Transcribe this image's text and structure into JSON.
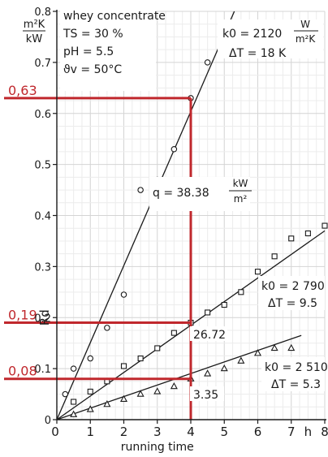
{
  "chart_data": {
    "type": "scatter",
    "title_lines": [
      "whey concentrate",
      "TS = 30 %",
      "pH = 5.5",
      "ϑv = 50°C"
    ],
    "ylabel_unit_top": "m²K",
    "ylabel_unit_bottom": "kW",
    "ylabel": "Rd",
    "xlabel": "running time",
    "x_unit": "h",
    "xlim": [
      0,
      8
    ],
    "ylim": [
      0,
      0.8
    ],
    "xticks": [
      0,
      1,
      2,
      3,
      4,
      5,
      6,
      7,
      8
    ],
    "xtick_labels": [
      "0",
      "1",
      "2",
      "3",
      "4",
      "5",
      "6",
      "7",
      "8"
    ],
    "yticks": [
      0,
      0.1,
      0.2,
      0.3,
      0.4,
      0.5,
      0.6,
      0.7,
      0.8
    ],
    "ytick_labels": [
      "0",
      "0.1",
      "0.2",
      "0.3",
      "0.4",
      "0.5",
      "0.6",
      "0.7",
      "0.8"
    ],
    "series": [
      {
        "marker": "circle",
        "line": [
          [
            0,
            0.0
          ],
          [
            5.3,
            0.8
          ]
        ],
        "points": [
          {
            "x": 0.25,
            "y": 0.05
          },
          {
            "x": 0.5,
            "y": 0.1
          },
          {
            "x": 1.0,
            "y": 0.12
          },
          {
            "x": 1.5,
            "y": 0.18
          },
          {
            "x": 2.0,
            "y": 0.245
          },
          {
            "x": 2.5,
            "y": 0.45
          },
          {
            "x": 3.0,
            "y": 0.47
          },
          {
            "x": 3.5,
            "y": 0.53
          },
          {
            "x": 4.0,
            "y": 0.63
          },
          {
            "x": 4.5,
            "y": 0.7
          }
        ],
        "labels": [
          {
            "text": "k0 = 2120",
            "unit_top": "W",
            "unit_bottom": "m²K"
          },
          {
            "text": "ΔT = 18 K"
          },
          {
            "text": "q = 38.38",
            "unit_top": "kW",
            "unit_bottom": "m²"
          }
        ]
      },
      {
        "marker": "square",
        "line": [
          [
            0,
            0.0
          ],
          [
            8.0,
            0.37
          ]
        ],
        "points": [
          {
            "x": 0.5,
            "y": 0.035
          },
          {
            "x": 1.0,
            "y": 0.055
          },
          {
            "x": 1.5,
            "y": 0.075
          },
          {
            "x": 2.0,
            "y": 0.105
          },
          {
            "x": 2.5,
            "y": 0.12
          },
          {
            "x": 3.0,
            "y": 0.14
          },
          {
            "x": 3.5,
            "y": 0.17
          },
          {
            "x": 4.0,
            "y": 0.19
          },
          {
            "x": 4.5,
            "y": 0.21
          },
          {
            "x": 5.0,
            "y": 0.225
          },
          {
            "x": 5.5,
            "y": 0.25
          },
          {
            "x": 6.0,
            "y": 0.29
          },
          {
            "x": 6.5,
            "y": 0.32
          },
          {
            "x": 7.0,
            "y": 0.355
          },
          {
            "x": 7.5,
            "y": 0.365
          },
          {
            "x": 8.0,
            "y": 0.38
          }
        ],
        "labels": [
          {
            "text": "26.72"
          },
          {
            "text": "k0 = 2 790"
          },
          {
            "text": "ΔT = 9.5"
          }
        ]
      },
      {
        "marker": "triangle",
        "line": [
          [
            0,
            0.0
          ],
          [
            7.3,
            0.165
          ]
        ],
        "points": [
          {
            "x": 0.5,
            "y": 0.01
          },
          {
            "x": 1.0,
            "y": 0.02
          },
          {
            "x": 1.5,
            "y": 0.03
          },
          {
            "x": 2.0,
            "y": 0.04
          },
          {
            "x": 2.5,
            "y": 0.05
          },
          {
            "x": 3.0,
            "y": 0.055
          },
          {
            "x": 3.5,
            "y": 0.065
          },
          {
            "x": 4.0,
            "y": 0.08
          },
          {
            "x": 4.5,
            "y": 0.09
          },
          {
            "x": 5.0,
            "y": 0.1
          },
          {
            "x": 5.5,
            "y": 0.115
          },
          {
            "x": 6.0,
            "y": 0.13
          },
          {
            "x": 6.5,
            "y": 0.14
          },
          {
            "x": 7.0,
            "y": 0.14
          }
        ],
        "labels": [
          {
            "text": "3.35"
          },
          {
            "text": "k0 = 2 510"
          },
          {
            "text": "ΔT = 5.3"
          }
        ]
      }
    ],
    "highlight": {
      "color": "#c0282d",
      "x": 4,
      "values": [
        {
          "y": 0.63,
          "label": "0,63"
        },
        {
          "y": 0.19,
          "label": "0,19"
        },
        {
          "y": 0.08,
          "label": "0,08"
        }
      ]
    }
  }
}
